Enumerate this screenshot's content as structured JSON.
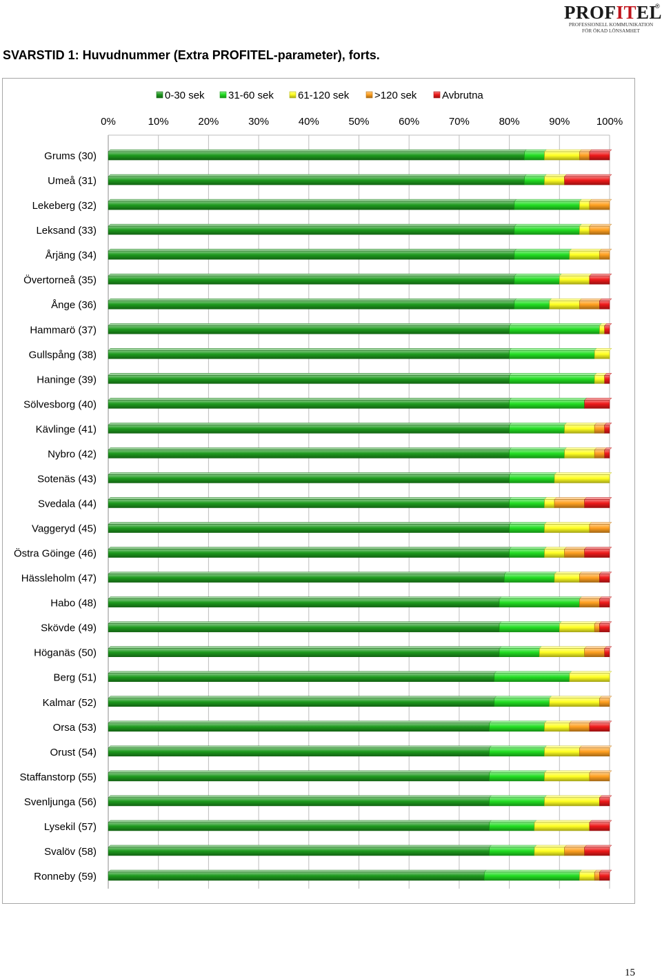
{
  "header": {
    "title": "SVARSTID 1: Huvudnummer (Extra PROFITEL-parameter), forts.",
    "logo": {
      "brand_prefix": "PROF",
      "brand_accent": "IT",
      "brand_suffix": "EL",
      "registered": "®",
      "tagline_line1": "PROFESSIONELL KOMMUNIKATION",
      "tagline_line2": "FÖR ÖKAD LÖNSAMHET"
    }
  },
  "page_number": "15",
  "chart_data": {
    "type": "bar",
    "orientation": "horizontal",
    "stacked": "percent",
    "legend_position": "top",
    "x_ticks": [
      "0%",
      "10%",
      "20%",
      "30%",
      "40%",
      "50%",
      "60%",
      "70%",
      "80%",
      "90%",
      "100%"
    ],
    "xlim": [
      0,
      100
    ],
    "grid": true,
    "categories": [
      "Grums (30)",
      "Umeå (31)",
      "Lekeberg (32)",
      "Leksand (33)",
      "Årjäng (34)",
      "Övertorneå (35)",
      "Ånge (36)",
      "Hammarö (37)",
      "Gullspång (38)",
      "Haninge (39)",
      "Sölvesborg (40)",
      "Kävlinge (41)",
      "Nybro (42)",
      "Sotenäs (43)",
      "Svedala (44)",
      "Vaggeryd (45)",
      "Östra Göinge (46)",
      "Hässleholm (47)",
      "Habo (48)",
      "Skövde (49)",
      "Höganäs (50)",
      "Berg (51)",
      "Kalmar (52)",
      "Orsa (53)",
      "Orust (54)",
      "Staffanstorp (55)",
      "Svenljunga (56)",
      "Lysekil (57)",
      "Svalöv (58)",
      "Ronneby (59)"
    ],
    "series": [
      {
        "name": "0-30 sek",
        "color": "#1e9a1e",
        "values": [
          83,
          83,
          81,
          81,
          81,
          81,
          81,
          80,
          80,
          80,
          80,
          80,
          80,
          80,
          80,
          80,
          80,
          79,
          78,
          78,
          78,
          77,
          77,
          76,
          76,
          76,
          76,
          76,
          76,
          75
        ]
      },
      {
        "name": "31-60 sek",
        "color": "#22dd22",
        "values": [
          4,
          4,
          13,
          13,
          11,
          9,
          7,
          18,
          17,
          17,
          15,
          11,
          11,
          9,
          7,
          7,
          7,
          10,
          16,
          12,
          8,
          15,
          11,
          11,
          11,
          11,
          11,
          9,
          9,
          19
        ]
      },
      {
        "name": "61-120 sek",
        "color": "#ffff22",
        "values": [
          7,
          4,
          2,
          2,
          6,
          6,
          6,
          1,
          3,
          2,
          0,
          6,
          6,
          11,
          2,
          9,
          4,
          5,
          0,
          7,
          9,
          8,
          10,
          5,
          7,
          9,
          11,
          11,
          6,
          3
        ]
      },
      {
        ">120 sek": null,
        "name": ">120 sek",
        "color": "#ffa020",
        "values": [
          2,
          0,
          4,
          4,
          2,
          0,
          4,
          0,
          0,
          0,
          0,
          2,
          2,
          0,
          6,
          4,
          4,
          4,
          4,
          1,
          4,
          0,
          2,
          4,
          6,
          4,
          0,
          0,
          4,
          1
        ]
      },
      {
        "name": "Avbrutna",
        "color": "#ee1a1a",
        "values": [
          4,
          9,
          0,
          0,
          0,
          4,
          2,
          1,
          0,
          1,
          5,
          1,
          1,
          0,
          5,
          0,
          5,
          2,
          2,
          2,
          1,
          0,
          0,
          4,
          0,
          0,
          2,
          4,
          5,
          2
        ]
      }
    ]
  }
}
